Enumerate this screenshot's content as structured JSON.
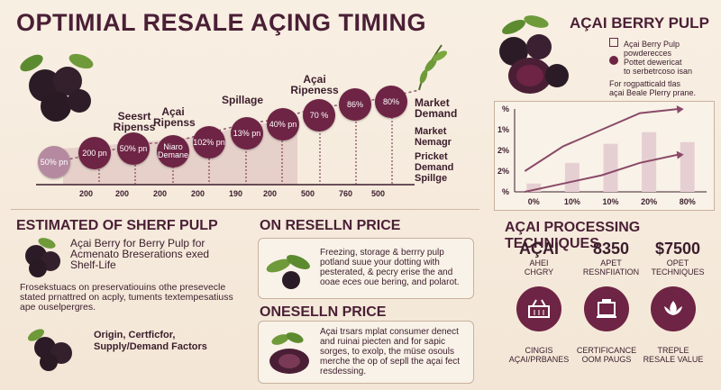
{
  "title": "OPTIMIAL RESALE AÇING TIMING",
  "timeline": {
    "labels": [
      {
        "text": "Seesrt\nRipenss"
      },
      {
        "text": "Açai\nRipenss"
      },
      {
        "text": "Spillage"
      },
      {
        "text": "Açai\nRipeness"
      },
      {
        "text": "Market\nDemand"
      }
    ],
    "circles": [
      "50% pn",
      "200 pn",
      "50% pn",
      "Niaro\nDemane",
      "102% pn",
      "13% pn",
      "40% pn",
      "70 %",
      "86%",
      "80%"
    ],
    "ticks": [
      "200",
      "200",
      "200",
      "200",
      "190",
      "200",
      "500",
      "760",
      "500"
    ],
    "side": [
      "Market\nNemagr",
      "Pricket\nDemand\nSpillge"
    ]
  },
  "berry_pulp": {
    "title": "AÇAI BERRY PULP",
    "lines": [
      "Açai Berry Pulp",
      "powderecces",
      "Pottet dewericat",
      "to serbetrcoso isan",
      "For rogpatticald tlas",
      "açai Beale Plerry prane."
    ]
  },
  "chart_data": {
    "type": "line",
    "x_ticks": [
      "0%",
      "10%",
      "10%",
      "20%",
      "80%"
    ],
    "y_ticks": [
      "%",
      "1%",
      "2%",
      "2%",
      "%"
    ],
    "bars": [
      0.1,
      0.35,
      0.58,
      0.72,
      0.6
    ],
    "line1": [
      0.25,
      0.55,
      0.75,
      0.95,
      1.0
    ],
    "line2": [
      0.0,
      0.1,
      0.2,
      0.35,
      0.45
    ]
  },
  "shelf": {
    "title": "ESTIMATED OF SHERF PULP",
    "intro": "Açai Berry for Berry Pulp for Acmenato Breserations exed Shelf-Life",
    "bullet1": "Frosekstuacs on preservatiouins othe presevecle stated prnattred on acply, tuments textempesatiuss ape ouselpergres.",
    "bullet2": "Origin, Certficfor, Supply/Demand Factors"
  },
  "resell": {
    "title": "ON RESELLN PRICE",
    "text": "Freezing, storage & berrry pulp potland suue your dotting with pesterated, & pecry erise the and ooae eces oue bering, and polarot."
  },
  "onesell": {
    "title": "ONESELLN PRICE",
    "text": "Açai trsars mplat consumer denect and ruinai piecten and for sapic sorges, to exolp, the müse osouls merche the op of sepll the açai fect resdessing."
  },
  "processing": {
    "title": "AÇAI PROCESSING TECHNIQUES",
    "stats": [
      {
        "big": "AÇAI",
        "small": "AHEI\nCHGRY"
      },
      {
        "big": "8350",
        "small": "APET\nRESNFIIATION"
      },
      {
        "big": "$7500",
        "small": "OPET\nTECHNIQUES"
      }
    ],
    "techs": [
      "CINGIS\nAÇAI/PRBANES",
      "CERTIFICANCE\nOOM PAUGS",
      "TREPLE\nRESALE VALUE"
    ]
  },
  "colors": {
    "accent": "#6e2444",
    "light": "#b58aa0",
    "bg": "#f6ecdf"
  }
}
